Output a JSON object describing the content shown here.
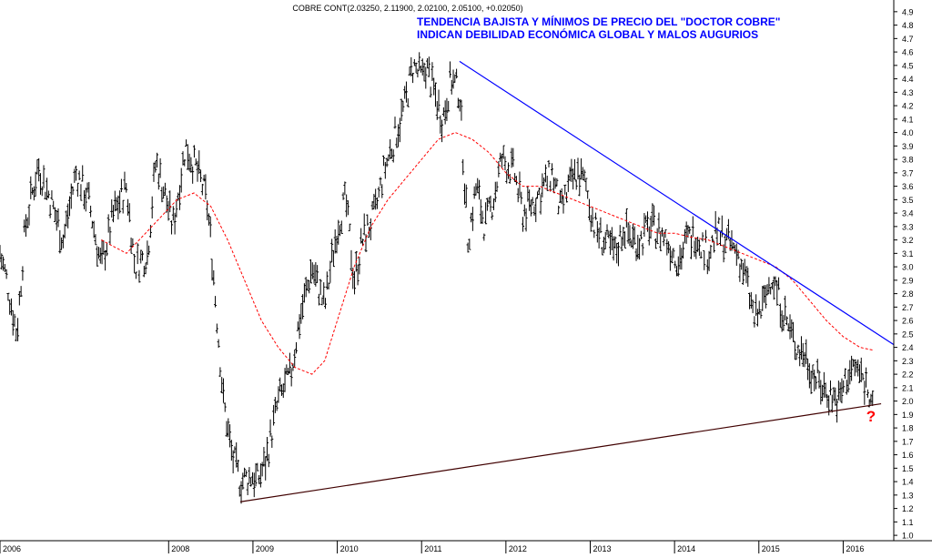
{
  "chart_data": {
    "type": "line",
    "subtype": "ohlc-bars",
    "title": "COBRE CONT(2.03250, 2.11900, 2.02100, 2.05100, +0.02050)",
    "annotation_lines": [
      "TENDENCIA BAJISTA Y MÍNIMOS DE PRECIO DEL \"DOCTOR COBRE\"",
      "INDICAN DEBILIDAD ECONÓMICA GLOBAL Y MALOS AUGURIOS"
    ],
    "question_mark": "?",
    "xlabel": "",
    "ylabel": "",
    "x_ticks": [
      "2006",
      "2008",
      "2009",
      "2010",
      "2011",
      "2012",
      "2013",
      "2014",
      "2015",
      "2016"
    ],
    "x_tick_dates": [
      2006.0,
      2008.0,
      2009.0,
      2010.0,
      2011.0,
      2012.0,
      2013.0,
      2014.0,
      2015.0,
      2016.0
    ],
    "xlim": [
      2006.0,
      2016.6
    ],
    "y_ticks": [
      "1.0",
      "1.1",
      "1.2",
      "1.3",
      "1.4",
      "1.5",
      "1.6",
      "1.7",
      "1.8",
      "1.9",
      "2.0",
      "2.1",
      "2.2",
      "2.3",
      "2.4",
      "2.5",
      "2.6",
      "2.7",
      "2.8",
      "2.9",
      "3.0",
      "3.1",
      "3.2",
      "3.3",
      "3.4",
      "3.5",
      "3.6",
      "3.7",
      "3.8",
      "3.9",
      "4.0",
      "4.1",
      "4.2",
      "4.3",
      "4.4",
      "4.5",
      "4.6",
      "4.7",
      "4.8",
      "4.9"
    ],
    "ylim": [
      0.96,
      4.96
    ],
    "y_axis_side": "right",
    "grid": false,
    "colors": {
      "price": "#000000",
      "moving_average": "#ff0000",
      "resistance": "#0000ff",
      "support": "#400000",
      "annotation": "#0000ff",
      "question": "#ff0000"
    },
    "series": [
      {
        "kind": "price",
        "x": [
          2006.0,
          2006.08,
          2006.2,
          2006.3,
          2006.45,
          2006.6,
          2006.75,
          2006.9,
          2007.05,
          2007.2,
          2007.35,
          2007.5,
          2007.6,
          2007.75,
          2007.85,
          2008.05,
          2008.2,
          2008.35,
          2008.45,
          2008.5,
          2008.65,
          2008.75,
          2008.85,
          2009.0,
          2009.05,
          2009.15,
          2009.3,
          2009.45,
          2009.55,
          2009.7,
          2009.85,
          2010.0,
          2010.1,
          2010.2,
          2010.3,
          2010.45,
          2010.55,
          2010.65,
          2010.8,
          2010.9,
          2011.0,
          2011.05,
          2011.15,
          2011.25,
          2011.35,
          2011.45,
          2011.55,
          2011.65,
          2011.75,
          2011.85,
          2011.95,
          2012.1,
          2012.2,
          2012.35,
          2012.45,
          2012.55,
          2012.65,
          2012.75,
          2012.85,
          2012.95,
          2013.05,
          2013.15,
          2013.3,
          2013.4,
          2013.5,
          2013.6,
          2013.7,
          2013.85,
          2013.95,
          2014.05,
          2014.15,
          2014.25,
          2014.4,
          2014.5,
          2014.6,
          2014.75,
          2014.85,
          2014.95,
          2015.05,
          2015.15,
          2015.25,
          2015.35,
          2015.45,
          2015.55,
          2015.65,
          2015.75,
          2015.85,
          2015.95,
          2016.05,
          2016.15,
          2016.25,
          2016.35
        ],
        "y": [
          3.1,
          2.9,
          2.5,
          3.3,
          3.75,
          3.5,
          3.2,
          3.7,
          3.5,
          3.0,
          3.4,
          3.6,
          3.0,
          3.1,
          3.8,
          3.3,
          3.9,
          3.7,
          3.5,
          3.2,
          2.0,
          1.6,
          1.4,
          1.45,
          1.4,
          1.55,
          2.0,
          2.2,
          2.6,
          3.0,
          2.7,
          3.3,
          3.5,
          2.9,
          3.2,
          3.4,
          3.7,
          3.9,
          4.2,
          4.5,
          4.4,
          4.5,
          4.3,
          4.1,
          4.4,
          4.3,
          3.2,
          3.6,
          3.3,
          3.5,
          3.8,
          3.7,
          3.4,
          3.5,
          3.6,
          3.7,
          3.4,
          3.6,
          3.7,
          3.6,
          3.3,
          3.2,
          3.1,
          3.3,
          3.2,
          3.2,
          3.3,
          3.25,
          3.15,
          3.05,
          3.2,
          3.25,
          3.1,
          3.25,
          3.2,
          3.1,
          2.9,
          2.6,
          2.7,
          2.95,
          2.75,
          2.55,
          2.4,
          2.35,
          2.2,
          2.1,
          2.05,
          2.0,
          2.2,
          2.25,
          2.15,
          2.05
        ]
      },
      {
        "kind": "moving-average",
        "x": [
          2007.2,
          2007.5,
          2007.8,
          2008.1,
          2008.3,
          2008.5,
          2008.7,
          2008.9,
          2009.1,
          2009.3,
          2009.5,
          2009.7,
          2009.85,
          2010.0,
          2010.2,
          2010.4,
          2010.6,
          2010.8,
          2011.0,
          2011.2,
          2011.4,
          2011.6,
          2011.8,
          2012.0,
          2012.2,
          2012.4,
          2012.6,
          2012.8,
          2013.0,
          2013.2,
          2013.4,
          2013.6,
          2013.8,
          2014.0,
          2014.2,
          2014.4,
          2014.6,
          2014.8,
          2015.0,
          2015.2,
          2015.4,
          2015.6,
          2015.8,
          2016.0,
          2016.2,
          2016.35
        ],
        "y": [
          3.2,
          3.1,
          3.3,
          3.5,
          3.55,
          3.45,
          3.2,
          2.9,
          2.6,
          2.4,
          2.25,
          2.2,
          2.3,
          2.6,
          3.0,
          3.3,
          3.5,
          3.65,
          3.8,
          3.95,
          4.0,
          3.95,
          3.85,
          3.7,
          3.6,
          3.6,
          3.55,
          3.5,
          3.45,
          3.4,
          3.35,
          3.3,
          3.25,
          3.25,
          3.22,
          3.2,
          3.15,
          3.1,
          3.05,
          3.0,
          2.9,
          2.75,
          2.6,
          2.48,
          2.4,
          2.38
        ]
      },
      {
        "kind": "resistance-trendline",
        "x": [
          2011.45,
          2016.6
        ],
        "y": [
          4.53,
          2.42
        ]
      },
      {
        "kind": "support-trendline",
        "x": [
          2008.85,
          2016.45
        ],
        "y": [
          1.25,
          1.98
        ]
      }
    ]
  }
}
